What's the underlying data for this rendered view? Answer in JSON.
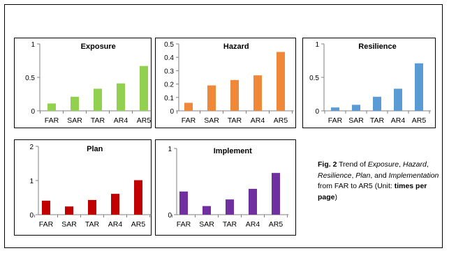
{
  "caption": {
    "fig_label": "Fig. 2",
    "pre": " Trend of ",
    "exposure": "Exposure",
    "sep1": ", ",
    "hazard": "Hazard",
    "sep2": ", ",
    "resilience": "Resilience",
    "sep3": ", ",
    "plan": "Plan",
    "and": ", and ",
    "implementation": "Implementation",
    "post": " from FAR to AR5 (Unit: ",
    "unit": "times per page",
    "end": ")"
  },
  "chart_data": [
    {
      "type": "bar",
      "title": "Exposure",
      "categories": [
        "FAR",
        "SAR",
        "TAR",
        "AR4",
        "AR5"
      ],
      "values": [
        0.11,
        0.21,
        0.33,
        0.41,
        0.67
      ],
      "color": "#92d050",
      "ylim": [
        0,
        1
      ],
      "yticks": [
        0,
        0.5,
        1
      ],
      "ytick_labels": [
        "0",
        "0.5",
        "1"
      ],
      "xlabel": "",
      "ylabel": "",
      "grid": false
    },
    {
      "type": "bar",
      "title": "Hazard",
      "categories": [
        "FAR",
        "SAR",
        "TAR",
        "AR4",
        "AR5"
      ],
      "values": [
        0.06,
        0.19,
        0.23,
        0.265,
        0.44
      ],
      "color": "#f0883a",
      "ylim": [
        0,
        0.5
      ],
      "yticks": [
        0,
        0.1,
        0.2,
        0.3,
        0.4,
        0.5
      ],
      "ytick_labels": [
        "0",
        "0.1",
        "0.2",
        "0.3",
        "0.4",
        "0.5"
      ],
      "xlabel": "",
      "ylabel": "",
      "grid": false
    },
    {
      "type": "bar",
      "title": "Resilience",
      "categories": [
        "FAR",
        "SAR",
        "TAR",
        "AR4",
        "AR5"
      ],
      "values": [
        0.05,
        0.09,
        0.21,
        0.33,
        0.71
      ],
      "color": "#5b9bd5",
      "ylim": [
        0,
        1
      ],
      "yticks": [
        0,
        0.5,
        1
      ],
      "ytick_labels": [
        "0",
        "0.5",
        "1"
      ],
      "xlabel": "",
      "ylabel": "",
      "grid": false
    },
    {
      "type": "bar",
      "title": "Plan",
      "categories": [
        "FAR",
        "SAR",
        "TAR",
        "AR4",
        "AR5"
      ],
      "values": [
        0.41,
        0.24,
        0.43,
        0.61,
        1.01
      ],
      "color": "#c00000",
      "ylim": [
        0,
        2
      ],
      "yticks": [
        0,
        1,
        2
      ],
      "ytick_labels": [
        "0",
        "1",
        "2"
      ],
      "xlabel": "",
      "ylabel": "",
      "grid": false
    },
    {
      "type": "bar",
      "title": "Implement",
      "categories": [
        "FAR",
        "SAR",
        "TAR",
        "AR4",
        "AR5"
      ],
      "values": [
        0.35,
        0.13,
        0.23,
        0.39,
        0.63
      ],
      "color": "#7030a0",
      "ylim": [
        0,
        1
      ],
      "yticks": [
        0,
        1
      ],
      "ytick_labels": [
        "0",
        "1"
      ],
      "xlabel": "",
      "ylabel": "",
      "grid": false
    }
  ]
}
